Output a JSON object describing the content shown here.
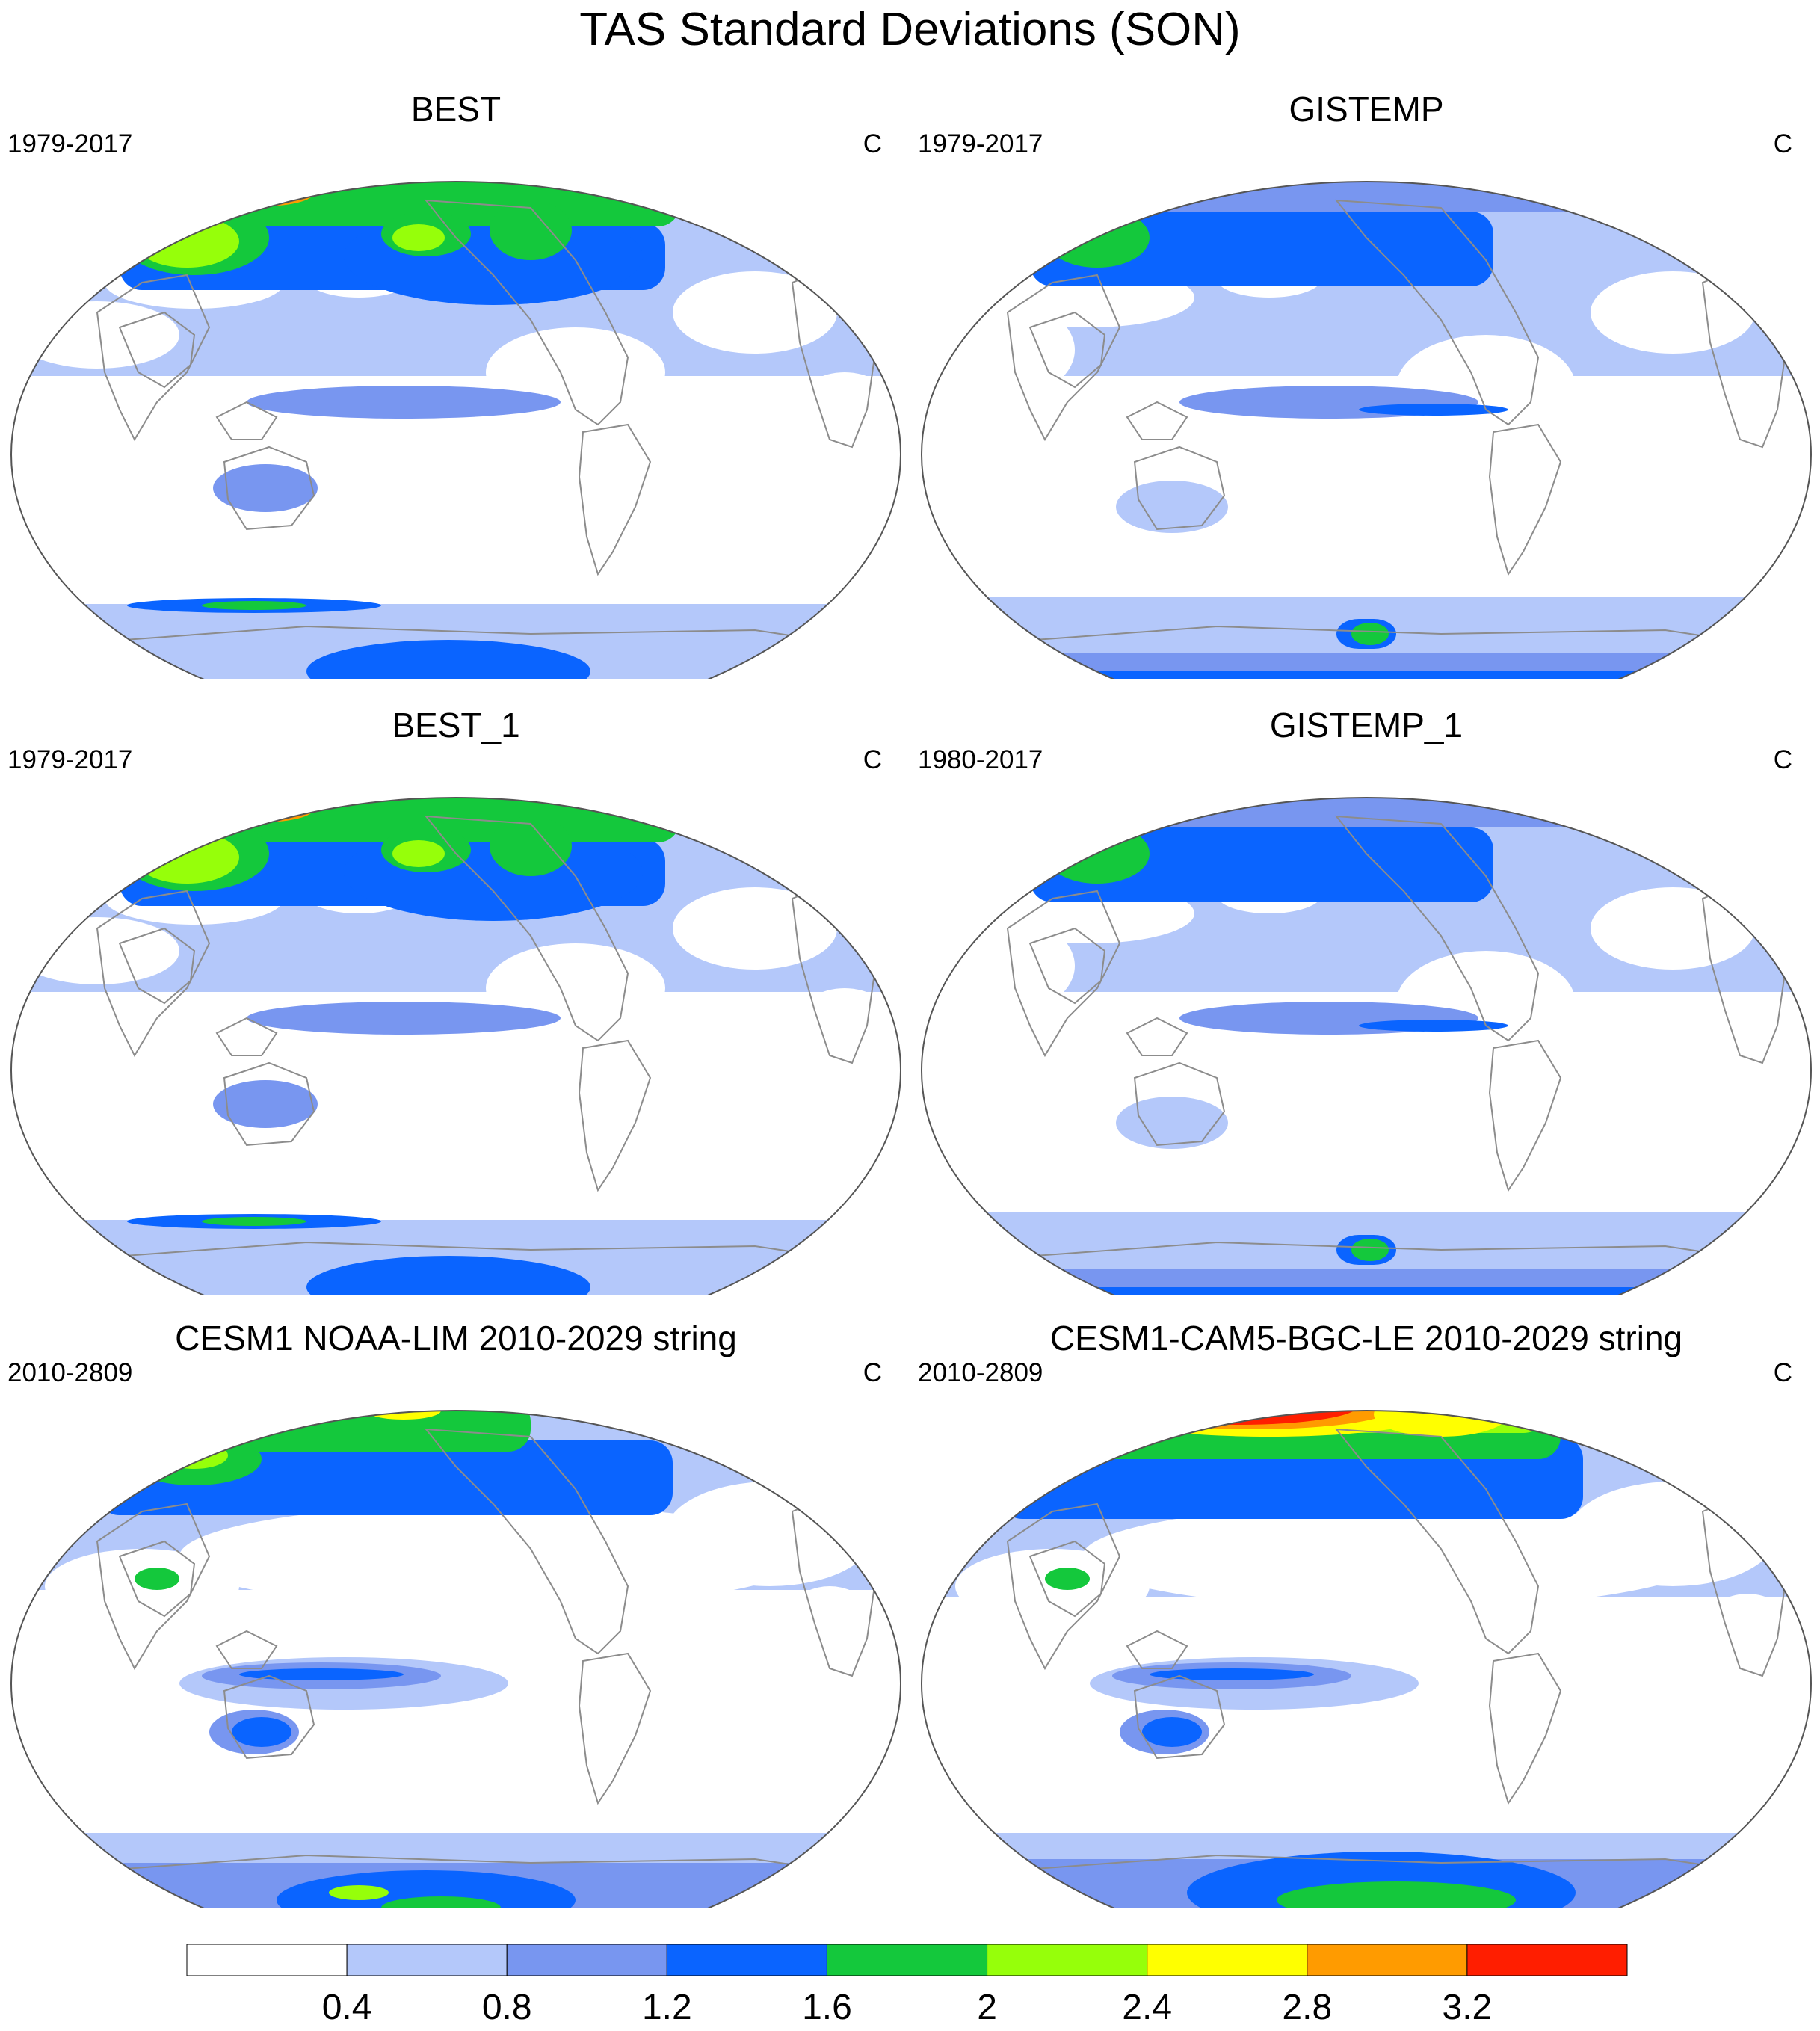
{
  "title": "TAS Standard Deviations (SON)",
  "colors": {
    "levels": [
      "#ffffff",
      "#b4c8fa",
      "#7896f0",
      "#0a64ff",
      "#14c83c",
      "#96ff0a",
      "#ffff00",
      "#ff9b00",
      "#ff1e00"
    ],
    "coastline": "#8c8c8c",
    "border": "#555555"
  },
  "panels": [
    {
      "title": "BEST",
      "left_label": "1979-2017",
      "right_label": "C",
      "pattern": "best"
    },
    {
      "title": "GISTEMP",
      "left_label": "1979-2017",
      "right_label": "C",
      "pattern": "gistemp"
    },
    {
      "title": "BEST_1",
      "left_label": "1979-2017",
      "right_label": "C",
      "pattern": "best"
    },
    {
      "title": "GISTEMP_1",
      "left_label": "1980-2017",
      "right_label": "C",
      "pattern": "gistemp"
    },
    {
      "title": "CESM1 NOAA-LIM 2010-2029 string",
      "left_label": "2010-2809",
      "right_label": "C",
      "pattern": "cesm_lim"
    },
    {
      "title": "CESM1-CAM5-BGC-LE 2010-2029 string",
      "left_label": "2010-2809",
      "right_label": "C",
      "pattern": "cesm_le"
    }
  ],
  "colorbar": {
    "labels": [
      "0.4",
      "0.8",
      "1.2",
      "1.6",
      "2",
      "2.4",
      "2.8",
      "3.2"
    ]
  }
}
